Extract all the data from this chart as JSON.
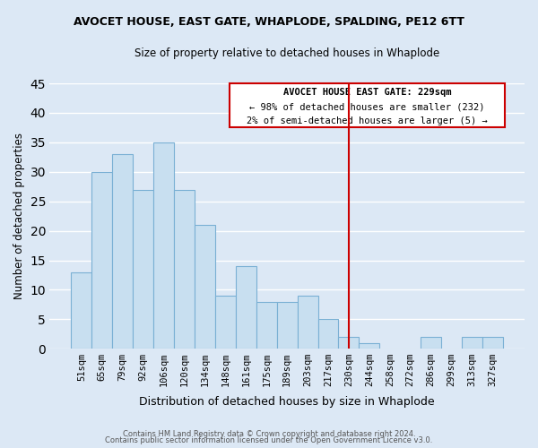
{
  "title": "AVOCET HOUSE, EAST GATE, WHAPLODE, SPALDING, PE12 6TT",
  "subtitle": "Size of property relative to detached houses in Whaplode",
  "xlabel": "Distribution of detached houses by size in Whaplode",
  "ylabel": "Number of detached properties",
  "bar_color": "#c8dff0",
  "bar_edge_color": "#7ab0d4",
  "background_color": "#dce8f5",
  "grid_color": "#ffffff",
  "categories": [
    "51sqm",
    "65sqm",
    "79sqm",
    "92sqm",
    "106sqm",
    "120sqm",
    "134sqm",
    "148sqm",
    "161sqm",
    "175sqm",
    "189sqm",
    "203sqm",
    "217sqm",
    "230sqm",
    "244sqm",
    "258sqm",
    "272sqm",
    "286sqm",
    "299sqm",
    "313sqm",
    "327sqm"
  ],
  "values": [
    13,
    30,
    33,
    27,
    35,
    27,
    21,
    9,
    14,
    8,
    8,
    9,
    5,
    2,
    1,
    0,
    0,
    2,
    0,
    2,
    2
  ],
  "ylim": [
    0,
    45
  ],
  "yticks": [
    0,
    5,
    10,
    15,
    20,
    25,
    30,
    35,
    40,
    45
  ],
  "vline_x": 13,
  "vline_color": "#cc0000",
  "annotation_title": "AVOCET HOUSE EAST GATE: 229sqm",
  "annotation_line1": "← 98% of detached houses are smaller (232)",
  "annotation_line2": "2% of semi-detached houses are larger (5) →",
  "footer1": "Contains HM Land Registry data © Crown copyright and database right 2024.",
  "footer2": "Contains public sector information licensed under the Open Government Licence v3.0."
}
